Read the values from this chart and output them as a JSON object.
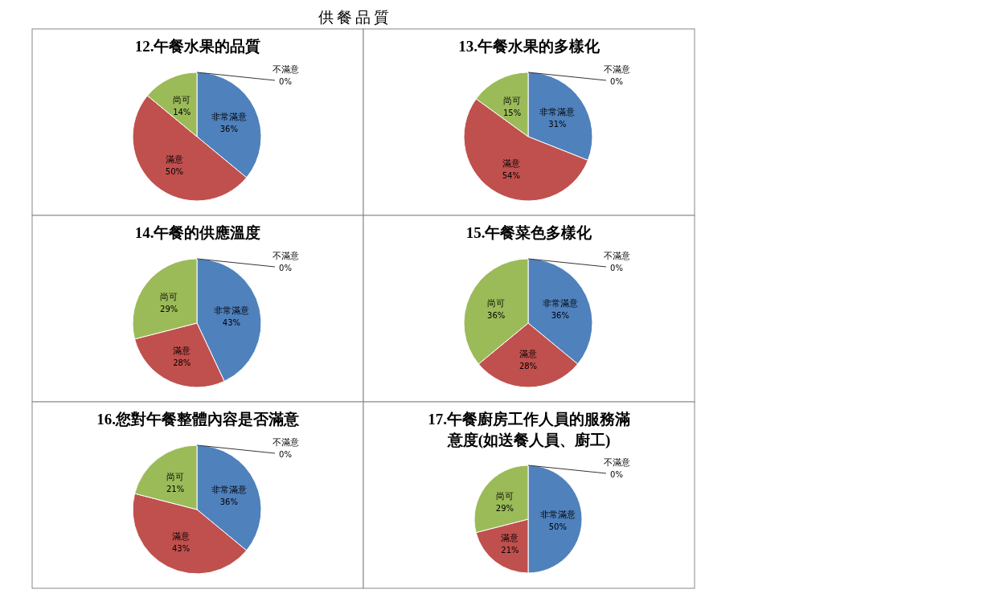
{
  "chart_data": [
    {
      "type": "pie",
      "title": "12.午餐水果的品質",
      "value_labels": [
        "36%",
        "50%",
        "14%",
        "0%"
      ],
      "annotations": [
        "供餐品質"
      ],
      "categories": [
        "非常滿意",
        "滿意",
        "尚可",
        "不滿意"
      ],
      "values": [
        36,
        50,
        14,
        0
      ],
      "colors": [
        "#4f81bd",
        "#c0504d",
        "#9bbb59",
        "#8064a2"
      ]
    },
    {
      "type": "pie",
      "title": "13.午餐水果的多樣化",
      "value_labels": [
        "31%",
        "54%",
        "15%",
        "0%"
      ],
      "categories": [
        "非常滿意",
        "滿意",
        "尚可",
        "不滿意"
      ],
      "values": [
        31,
        54,
        15,
        0
      ],
      "colors": [
        "#4f81bd",
        "#c0504d",
        "#9bbb59",
        "#8064a2"
      ]
    },
    {
      "type": "pie",
      "title": "14.午餐的供應溫度",
      "value_labels": [
        "43%",
        "28%",
        "29%",
        "0%"
      ],
      "categories": [
        "非常滿意",
        "滿意",
        "尚可",
        "不滿意"
      ],
      "values": [
        43,
        28,
        29,
        0
      ],
      "colors": [
        "#4f81bd",
        "#c0504d",
        "#9bbb59",
        "#8064a2"
      ]
    },
    {
      "type": "pie",
      "title": "15.午餐菜色多樣化",
      "value_labels": [
        "36%",
        "28%",
        "36%",
        "0%"
      ],
      "categories": [
        "非常滿意",
        "滿意",
        "尚可",
        "不滿意"
      ],
      "values": [
        36,
        28,
        36,
        0
      ],
      "colors": [
        "#4f81bd",
        "#c0504d",
        "#9bbb59",
        "#8064a2"
      ]
    },
    {
      "type": "pie",
      "title": "16.您對午餐整體內容是否滿意",
      "value_labels": [
        "36%",
        "43%",
        "21%",
        "0%"
      ],
      "categories": [
        "非常滿意",
        "滿意",
        "尚可",
        "不滿意"
      ],
      "values": [
        36,
        43,
        21,
        0
      ],
      "colors": [
        "#4f81bd",
        "#c0504d",
        "#9bbb59",
        "#8064a2"
      ]
    },
    {
      "type": "pie",
      "title": "17.午餐廚房工作人員的服務滿意度(如送餐人員、廚工)",
      "value_labels": [
        "50%",
        "21%",
        "29%",
        "0%"
      ],
      "categories": [
        "非常滿意",
        "滿意",
        "尚可",
        "不滿意"
      ],
      "values": [
        50,
        21,
        29,
        0
      ],
      "colors": [
        "#4f81bd",
        "#c0504d",
        "#9bbb59",
        "#8064a2"
      ]
    }
  ]
}
